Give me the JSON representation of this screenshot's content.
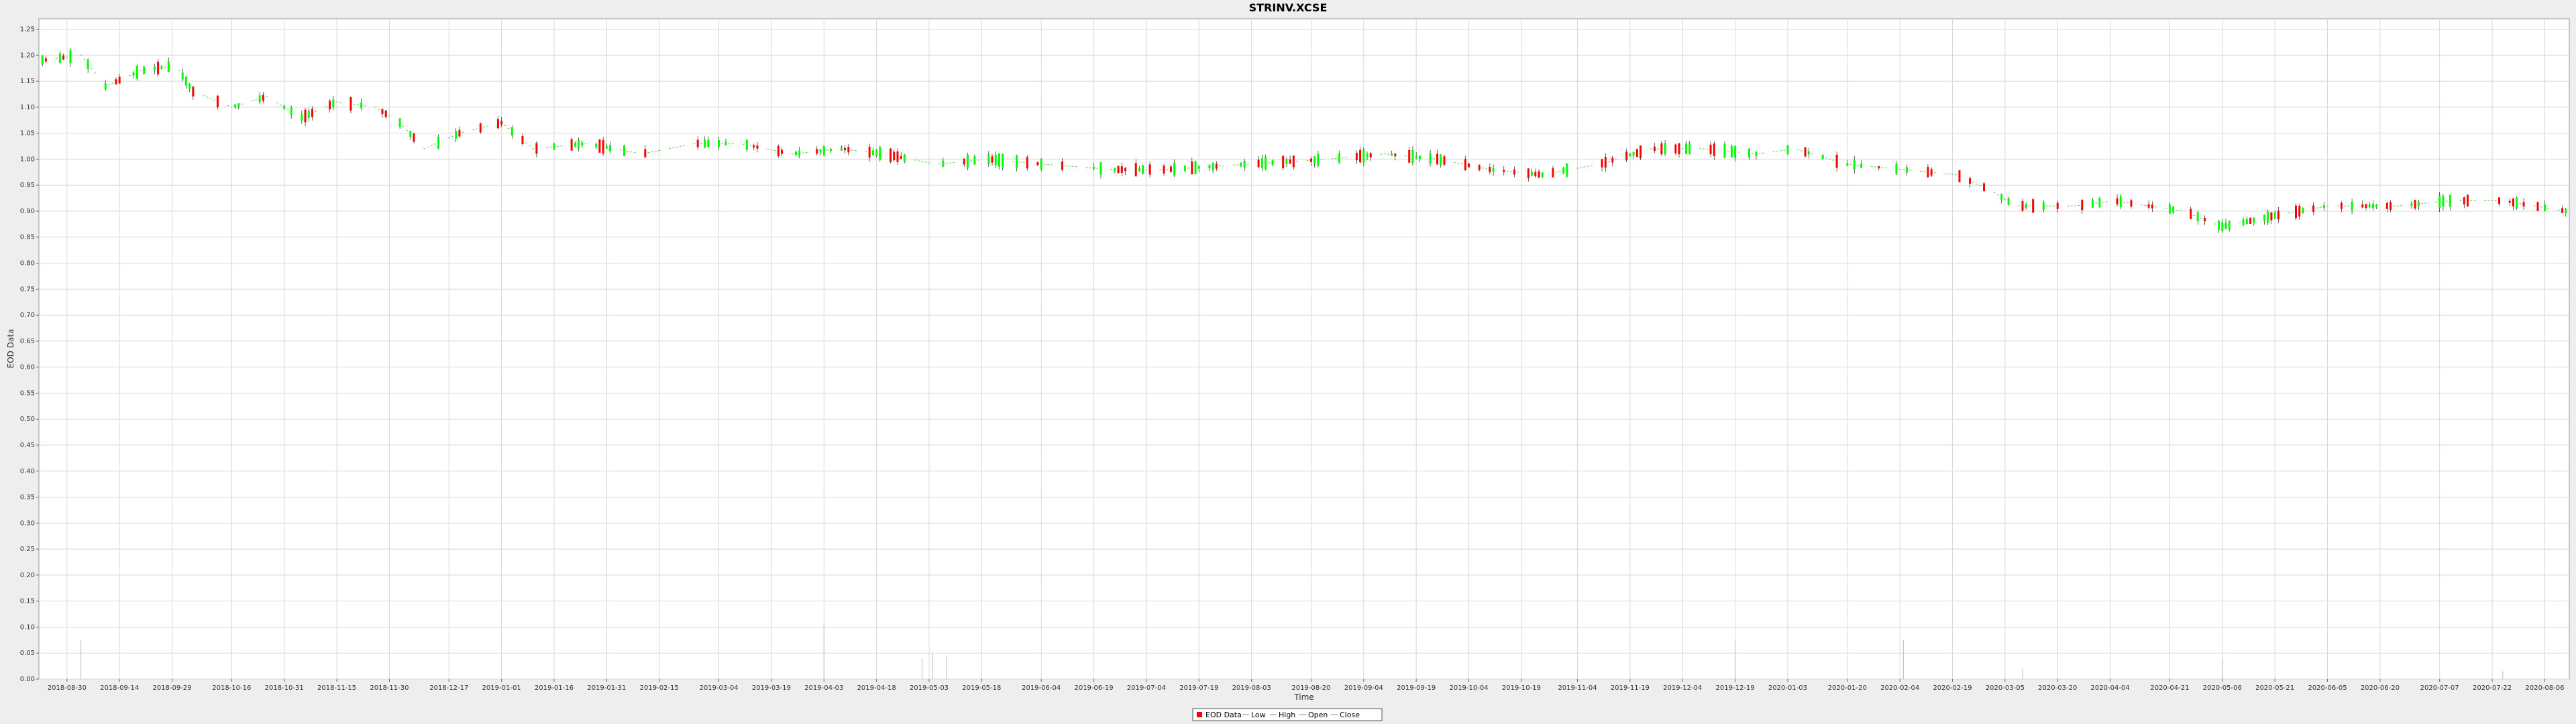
{
  "chart_data": {
    "type": "candlestick",
    "title": "STRINV.XCSE",
    "xlabel": "Time",
    "ylabel": "EOD Data",
    "ylim": [
      0,
      1.27
    ],
    "y_ticks": [
      "0.00",
      "0.05",
      "0.10",
      "0.15",
      "0.20",
      "0.25",
      "0.30",
      "0.35",
      "0.40",
      "0.45",
      "0.50",
      "0.55",
      "0.60",
      "0.65",
      "0.70",
      "0.75",
      "0.80",
      "0.85",
      "0.90",
      "0.95",
      "1.00",
      "1.05",
      "1.10",
      "1.15",
      "1.20",
      "1.25"
    ],
    "x_ticks": [
      "2018-08-30",
      "2018-09-14",
      "2018-09-29",
      "2018-10-16",
      "2018-10-31",
      "2018-11-15",
      "2018-11-30",
      "2018-12-17",
      "2019-01-01",
      "2019-01-16",
      "2019-01-31",
      "2019-02-15",
      "2019-03-04",
      "2019-03-19",
      "2019-04-03",
      "2019-04-18",
      "2019-05-03",
      "2019-05-18",
      "2019-06-04",
      "2019-06-19",
      "2019-07-04",
      "2019-07-19",
      "2019-08-03",
      "2019-08-20",
      "2019-09-04",
      "2019-09-19",
      "2019-10-04",
      "2019-10-19",
      "2019-11-04",
      "2019-11-19",
      "2019-12-04",
      "2019-12-19",
      "2020-01-03",
      "2020-01-20",
      "2020-02-04",
      "2020-02-19",
      "2020-03-05",
      "2020-03-20",
      "2020-04-04",
      "2020-04-21",
      "2020-05-06",
      "2020-05-21",
      "2020-06-05",
      "2020-06-20",
      "2020-07-07",
      "2020-07-22",
      "2020-08-06"
    ],
    "x_range": [
      "2018-08-22",
      "2020-08-13"
    ],
    "grid": true,
    "legend_position": "bottom-center",
    "legend": [
      "EOD Data",
      "Low",
      "High",
      "Open",
      "Close"
    ],
    "anchor_prices": [
      [
        "2018-08-23",
        1.19
      ],
      [
        "2018-09-03",
        1.2
      ],
      [
        "2018-09-10",
        1.14
      ],
      [
        "2018-09-20",
        1.17
      ],
      [
        "2018-09-30",
        1.18
      ],
      [
        "2018-10-05",
        1.13
      ],
      [
        "2018-10-16",
        1.1
      ],
      [
        "2018-10-26",
        1.12
      ],
      [
        "2018-11-05",
        1.08
      ],
      [
        "2018-11-15",
        1.11
      ],
      [
        "2018-11-26",
        1.1
      ],
      [
        "2018-12-03",
        1.07
      ],
      [
        "2018-12-10",
        1.02
      ],
      [
        "2018-12-20",
        1.05
      ],
      [
        "2019-01-01",
        1.07
      ],
      [
        "2019-01-10",
        1.02
      ],
      [
        "2019-01-25",
        1.03
      ],
      [
        "2019-02-10",
        1.01
      ],
      [
        "2019-02-25",
        1.03
      ],
      [
        "2019-03-10",
        1.03
      ],
      [
        "2019-03-25",
        1.01
      ],
      [
        "2019-04-08",
        1.02
      ],
      [
        "2019-04-20",
        1.01
      ],
      [
        "2019-05-05",
        0.99
      ],
      [
        "2019-05-20",
        1.0
      ],
      [
        "2019-06-05",
        0.99
      ],
      [
        "2019-06-25",
        0.98
      ],
      [
        "2019-07-10",
        0.98
      ],
      [
        "2019-08-01",
        0.99
      ],
      [
        "2019-08-25",
        1.0
      ],
      [
        "2019-09-10",
        1.01
      ],
      [
        "2019-09-25",
        1.0
      ],
      [
        "2019-10-10",
        0.98
      ],
      [
        "2019-10-25",
        0.97
      ],
      [
        "2019-11-10",
        0.99
      ],
      [
        "2019-11-25",
        1.02
      ],
      [
        "2019-12-10",
        1.02
      ],
      [
        "2019-12-25",
        1.01
      ],
      [
        "2020-01-05",
        1.02
      ],
      [
        "2020-01-20",
        0.99
      ],
      [
        "2020-02-05",
        0.98
      ],
      [
        "2020-02-20",
        0.97
      ],
      [
        "2020-03-01",
        0.94
      ],
      [
        "2020-03-08",
        0.91
      ],
      [
        "2020-03-25",
        0.91
      ],
      [
        "2020-04-05",
        0.92
      ],
      [
        "2020-04-25",
        0.9
      ],
      [
        "2020-05-06",
        0.87
      ],
      [
        "2020-05-20",
        0.89
      ],
      [
        "2020-06-05",
        0.91
      ],
      [
        "2020-06-25",
        0.91
      ],
      [
        "2020-07-10",
        0.92
      ],
      [
        "2020-07-25",
        0.92
      ],
      [
        "2020-08-12",
        0.9
      ]
    ],
    "volume_spikes": [
      [
        "2018-09-03",
        0.075
      ],
      [
        "2019-04-03",
        0.105
      ],
      [
        "2019-05-01",
        0.04
      ],
      [
        "2019-05-04",
        0.05
      ],
      [
        "2019-05-08",
        0.045
      ],
      [
        "2019-12-19",
        0.075
      ],
      [
        "2020-02-05",
        0.075
      ],
      [
        "2020-05-06",
        0.04
      ],
      [
        "2020-03-10",
        0.02
      ],
      [
        "2020-07-25",
        0.015
      ]
    ],
    "colors": {
      "up": "#00ff00",
      "down": "#ff0000",
      "wick": "#000000",
      "grid": "#d8d8d8"
    }
  }
}
